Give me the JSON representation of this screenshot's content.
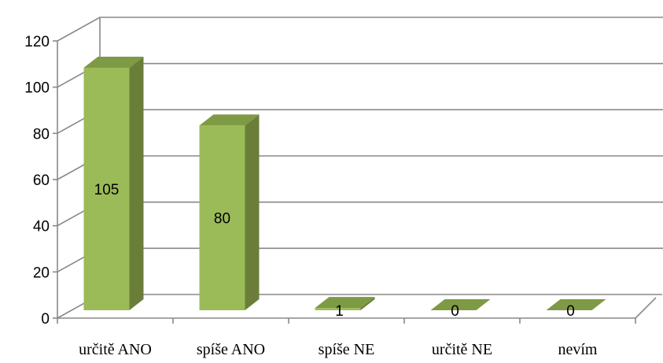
{
  "chart_data": {
    "type": "bar",
    "categories": [
      "určitě ANO",
      "spíše ANO",
      "spíše NE",
      "určitě NE",
      "nevím"
    ],
    "values": [
      105,
      80,
      1,
      0,
      0
    ],
    "yticks": [
      0,
      20,
      40,
      60,
      80,
      100,
      120
    ],
    "ylim": [
      0,
      120
    ],
    "grid": true,
    "legend": "none",
    "colors": {
      "front": "#9BBB59",
      "side": "#6A7E3A",
      "top": "#7E9A44"
    }
  }
}
